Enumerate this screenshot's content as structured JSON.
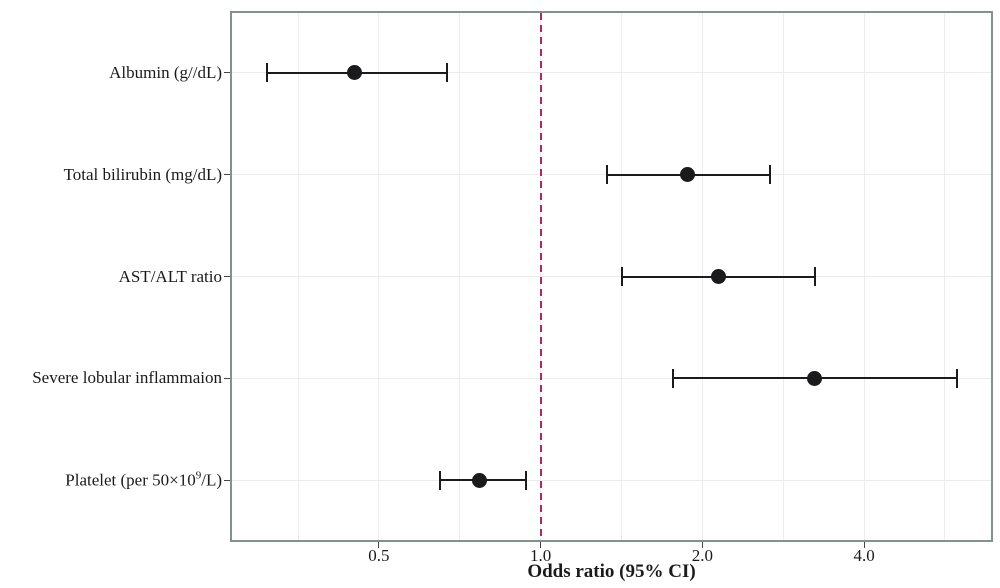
{
  "chart_data": {
    "type": "scatter",
    "subtype": "forest-plot-odds-ratio",
    "title": "",
    "xlabel": "Odds ratio (95% CI)",
    "ylabel": "",
    "x_scale": "log",
    "xlim": [
      0.2665,
      6.89
    ],
    "grid": true,
    "legend": false,
    "xticks": [
      {
        "value": 0.5,
        "label": "0.5"
      },
      {
        "value": 1.0,
        "label": "1.0"
      },
      {
        "value": 2.0,
        "label": "2.0"
      },
      {
        "value": 4.0,
        "label": "4.0"
      }
    ],
    "gridlines_x": [
      0.354,
      0.5,
      0.707,
      1.0,
      1.414,
      2.0,
      2.828,
      4.0,
      5.657
    ],
    "reference_line": {
      "value": 1.0,
      "style": "dashed"
    },
    "points": [
      {
        "label": "Albumin (g//dL)",
        "or": 0.45,
        "ci_low": 0.31,
        "ci_high": 0.67
      },
      {
        "label": "Total bilirubin (mg/dL)",
        "or": 1.88,
        "ci_low": 1.33,
        "ci_high": 2.67
      },
      {
        "label": "AST/ALT ratio",
        "or": 2.14,
        "ci_low": 1.42,
        "ci_high": 3.24
      },
      {
        "label": "Severe lobular inflammaion",
        "or": 3.23,
        "ci_low": 1.76,
        "ci_high": 5.96
      },
      {
        "label": "Platelet (per 50×10⁹/L)",
        "or": 0.77,
        "ci_low": 0.65,
        "ci_high": 0.94
      }
    ],
    "colors": {
      "marker": "#1b1b1d",
      "error_bar": "#1b1b1d",
      "reference_line": "#a72c62",
      "panel_border": "#7e948c",
      "gridline": "#ececec",
      "text": "#1a1a1a",
      "background": "#ffffff"
    }
  }
}
